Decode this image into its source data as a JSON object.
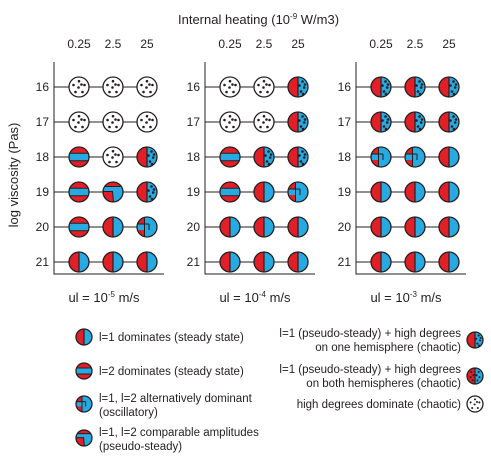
{
  "title": {
    "main": "Internal heating (10",
    "sup": "-9",
    "units": " W/m3)"
  },
  "y_axis_label": "log viscosity (Pas)",
  "x_ticks": [
    "0.25",
    "2.5",
    "25"
  ],
  "y_ticks": [
    "16",
    "17",
    "18",
    "19",
    "20",
    "21"
  ],
  "colors": {
    "red": "#e21f26",
    "blue": "#27aae1",
    "line": "#231f20",
    "dot": "#231f20"
  },
  "panels": [
    {
      "caption": {
        "pre": "ul = 10",
        "sup": "-5",
        "post": " m/s"
      },
      "grid": [
        [
          "chaotic_both",
          "chaotic_both",
          "chaotic_both"
        ],
        [
          "chaotic_both",
          "chaotic_both",
          "chaotic_both"
        ],
        [
          "l2_steady",
          "chaotic_both",
          "pseudo_one"
        ],
        [
          "l2_steady",
          "comparable",
          "pseudo_one"
        ],
        [
          "l2_steady",
          "l1_steady",
          "oscillatory"
        ],
        [
          "l1_steady",
          "l1_steady",
          "l1_steady"
        ]
      ]
    },
    {
      "caption": {
        "pre": "ul = 10",
        "sup": "-4",
        "post": " m/s"
      },
      "grid": [
        [
          "chaotic_both",
          "chaotic_both",
          "pseudo_one"
        ],
        [
          "chaotic_both",
          "chaotic_both",
          "pseudo_one"
        ],
        [
          "l2_steady",
          "pseudo_one",
          "pseudo_one"
        ],
        [
          "l2_steady",
          "l1_steady",
          "oscillatory"
        ],
        [
          "l1_steady",
          "l1_steady",
          "l1_steady"
        ],
        [
          "l1_steady",
          "l1_steady",
          "l1_steady"
        ]
      ]
    },
    {
      "caption": {
        "pre": "ul = 10",
        "sup": "-3",
        "post": " m/s"
      },
      "grid": [
        [
          "pseudo_one",
          "pseudo_one",
          "pseudo_one"
        ],
        [
          "pseudo_one",
          "pseudo_one",
          "pseudo_one"
        ],
        [
          "oscillatory",
          "oscillatory",
          "l1_steady"
        ],
        [
          "l1_steady",
          "l1_steady",
          "l1_steady"
        ],
        [
          "l1_steady",
          "l1_steady",
          "l1_steady"
        ],
        [
          "l1_steady",
          "l1_steady",
          "l1_steady"
        ]
      ]
    }
  ],
  "legend": {
    "left": [
      {
        "type": "l1_steady",
        "lines": [
          "l=1 dominates (steady state)"
        ]
      },
      {
        "type": "l2_steady",
        "lines": [
          "l=2 dominates (steady state)"
        ]
      },
      {
        "type": "oscillatory",
        "lines": [
          "l=1, l=2 alternatively dominant",
          "(oscillatory)"
        ]
      },
      {
        "type": "comparable",
        "lines": [
          "l=1, l=2 comparable amplitudes",
          "(pseudo-steady)"
        ]
      }
    ],
    "right": [
      {
        "type": "pseudo_one",
        "lines": [
          "l=1 (pseudo-steady) + high degrees",
          "on one hemisphere (chaotic)"
        ]
      },
      {
        "type": "pseudo_both",
        "lines": [
          "l=1 (pseudo-steady) + high degrees",
          "on both hemispheres (chaotic)"
        ]
      },
      {
        "type": "chaotic_both",
        "lines": [
          "high degrees dominate (chaotic)"
        ]
      }
    ]
  }
}
